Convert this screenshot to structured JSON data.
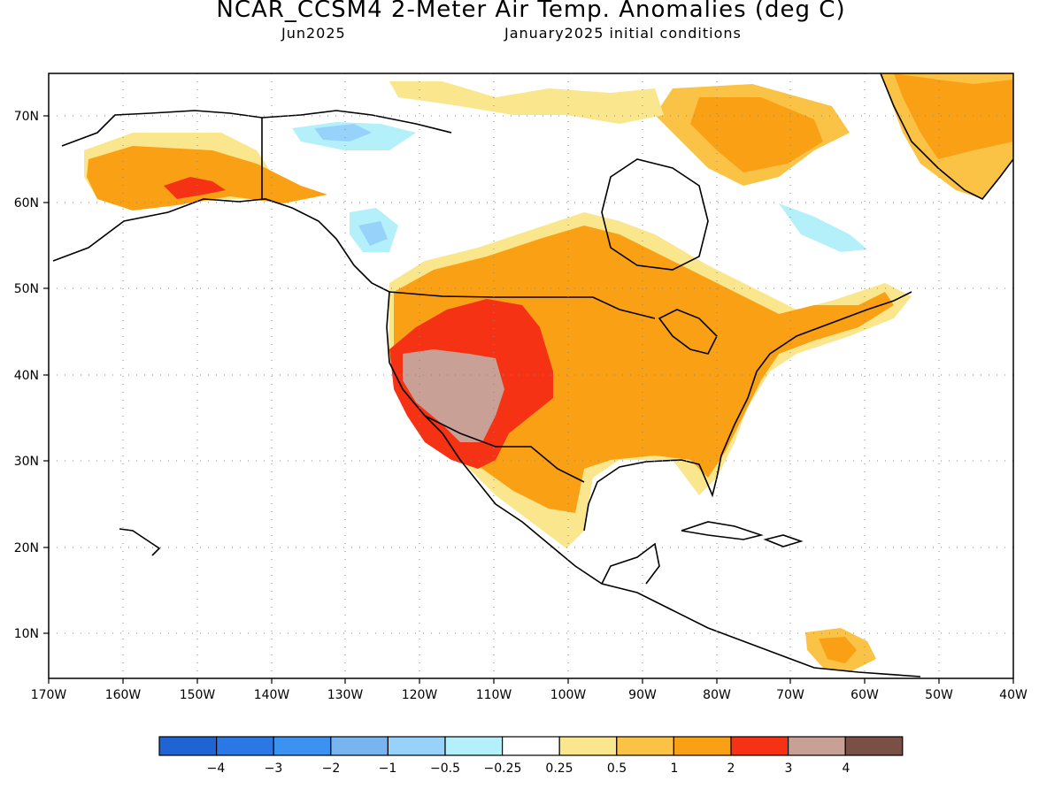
{
  "header": {
    "title": "NCAR_CCSM4 2-Meter Air Temp. Anomalies (deg C)",
    "month": "Jun2025",
    "init": "January2025 initial conditions"
  },
  "axes": {
    "lon_ticks": [
      "170W",
      "160W",
      "150W",
      "140W",
      "130W",
      "120W",
      "110W",
      "100W",
      "90W",
      "80W",
      "70W",
      "60W",
      "50W",
      "40W"
    ],
    "lat_ticks": [
      "70N",
      "60N",
      "50N",
      "40N",
      "30N",
      "20N",
      "10N"
    ],
    "lon_range": [
      -170,
      -40
    ],
    "lat_range": [
      5,
      75
    ]
  },
  "legend": {
    "colors": [
      "#1e64d2",
      "#2a78e6",
      "#3c92f0",
      "#78b4f0",
      "#96d2fa",
      "#b4f0fa",
      "#ffffff",
      "#fae68c",
      "#fac346",
      "#faa014",
      "#f53214",
      "#c8a096",
      "#7a5046"
    ],
    "labels": [
      "−4",
      "−3",
      "−2",
      "−1",
      "−0.5",
      "−0.25",
      "0.25",
      "0.5",
      "1",
      "2",
      "3",
      "4"
    ]
  },
  "anomaly_regions": [
    {
      "name": "alaska",
      "level": "1",
      "color": "#faa014"
    },
    {
      "name": "contiguous-us",
      "level": "1-2",
      "color": "#faa014"
    },
    {
      "name": "great-basin",
      "level": "3-4",
      "color": "#c8a096"
    },
    {
      "name": "rockies",
      "level": "2-3",
      "color": "#f53214"
    },
    {
      "name": "greenland",
      "level": "0.5-1",
      "color": "#fac346"
    },
    {
      "name": "northern-canada",
      "level": "-0.5 to -1",
      "color": "#96d2fa"
    }
  ]
}
